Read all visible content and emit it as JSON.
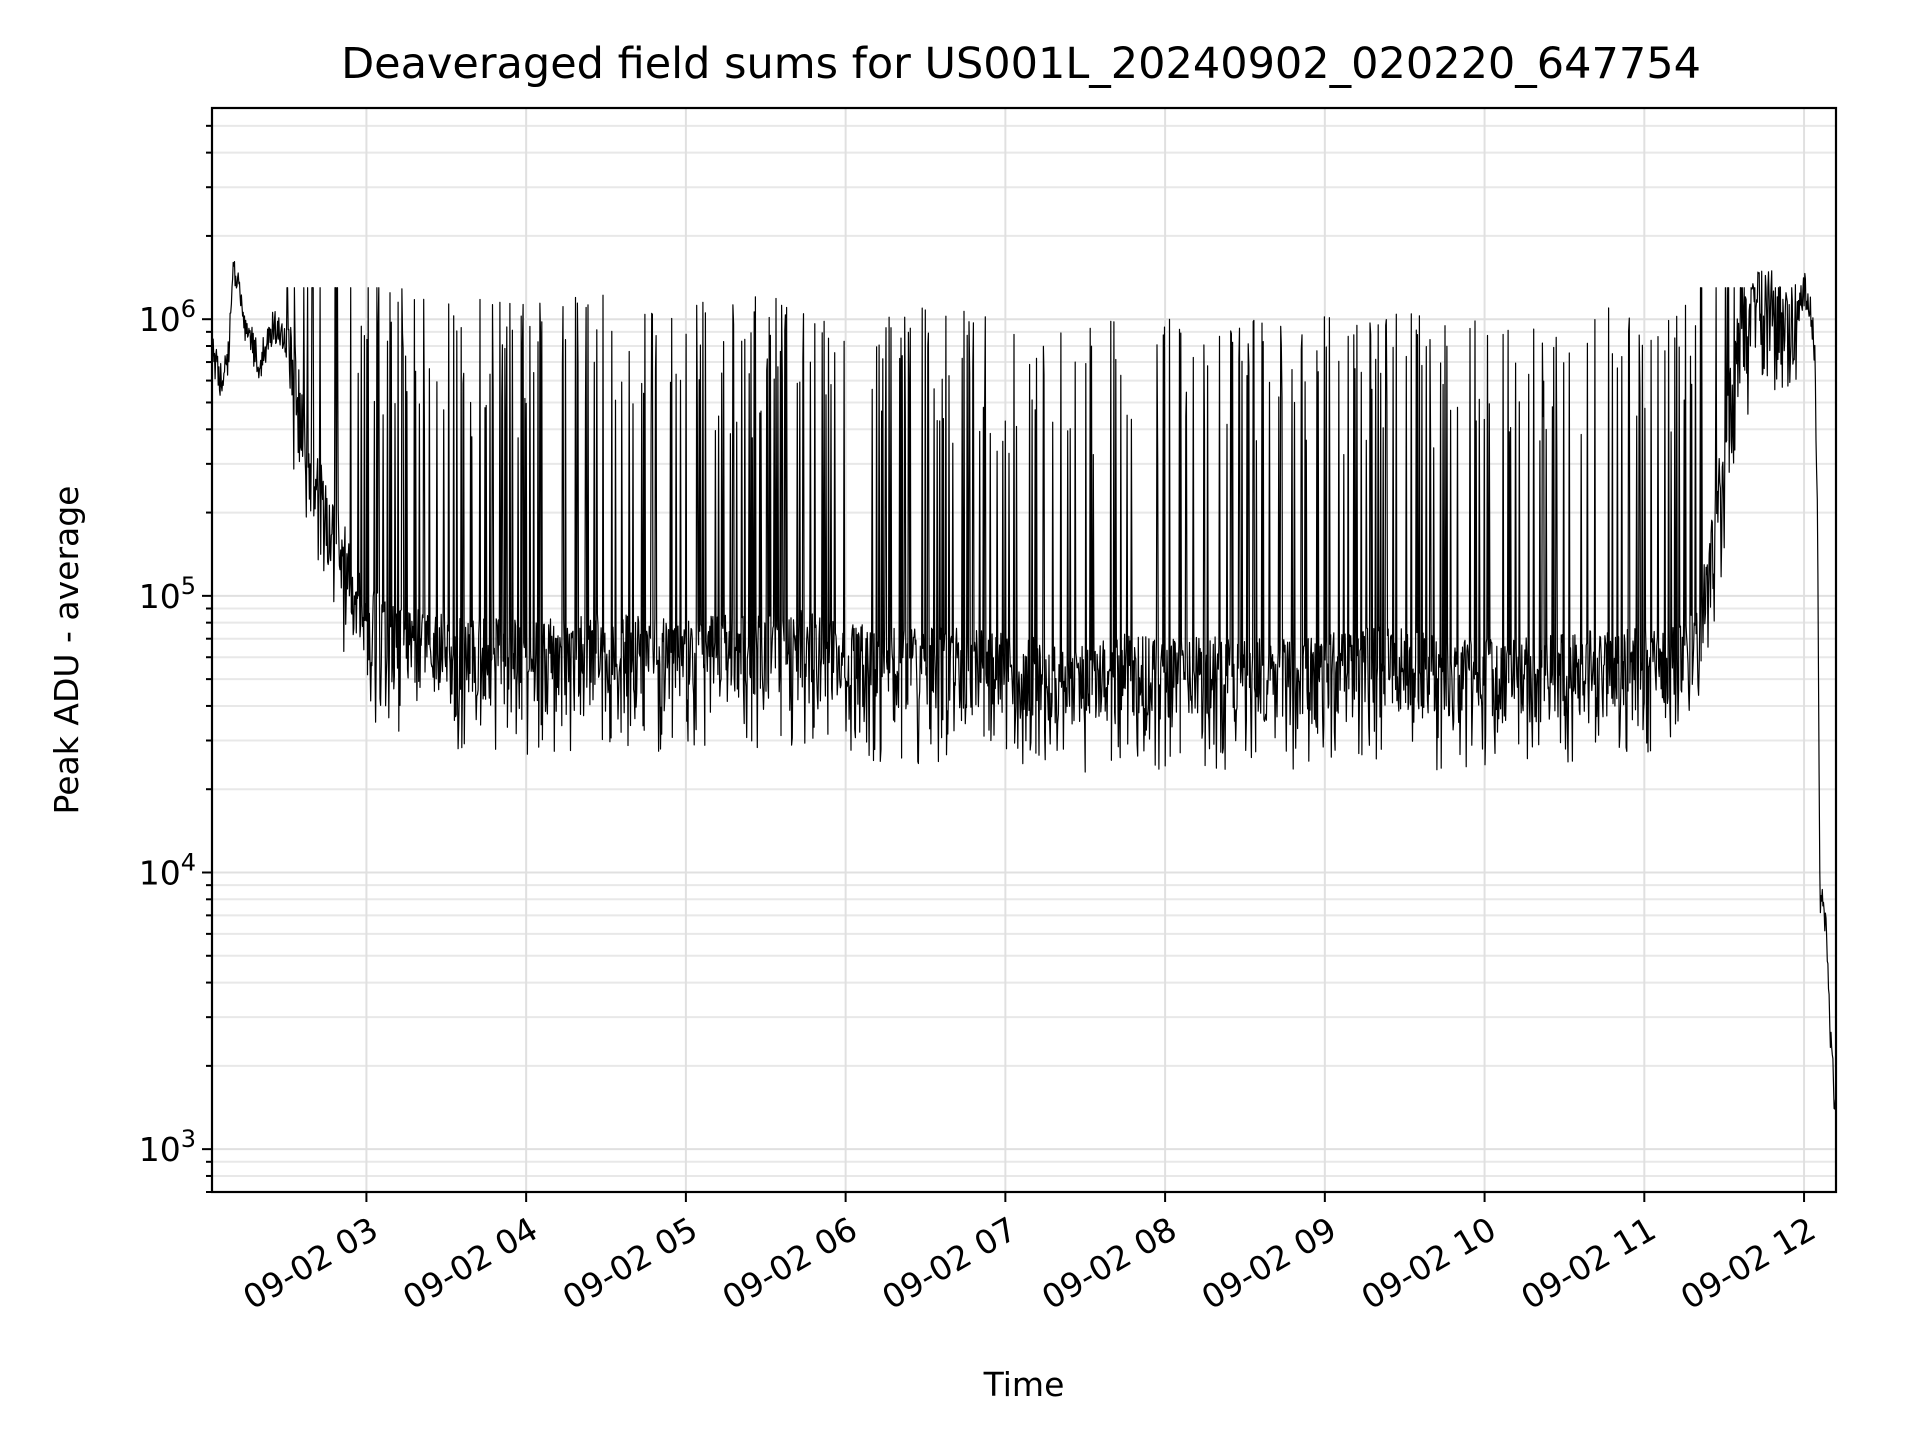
{
  "chart_data": {
    "type": "line",
    "title": "Deaveraged field sums for US001L_20240902_020220_647754",
    "xlabel": "Time",
    "ylabel": "Peak ADU - average",
    "yscale": "log",
    "ylim": [
      700,
      5800000
    ],
    "xlim": [
      "09-02 02:02",
      "09-02 12:12"
    ],
    "grid": true,
    "x_tick_labels": [
      "09-02 03",
      "09-02 04",
      "09-02 05",
      "09-02 06",
      "09-02 07",
      "09-02 08",
      "09-02 09",
      "09-02 10",
      "09-02 11",
      "09-02 12"
    ],
    "y_ticks": [
      {
        "base": "10",
        "exp": "3",
        "value": 1000
      },
      {
        "base": "10",
        "exp": "4",
        "value": 10000
      },
      {
        "base": "10",
        "exp": "5",
        "value": 100000
      },
      {
        "base": "10",
        "exp": "6",
        "value": 1000000
      }
    ],
    "series": [
      {
        "color": "#000000",
        "x": [
          "09-02 02:02",
          "09-02 02:05",
          "09-02 02:08",
          "09-02 02:10",
          "09-02 02:12",
          "09-02 02:15",
          "09-02 02:20",
          "09-02 02:25",
          "09-02 02:30",
          "09-02 02:35",
          "09-02 02:40",
          "09-02 02:45",
          "09-02 02:50",
          "09-02 02:55",
          "09-02 03:00",
          "09-02 03:10",
          "09-02 03:20",
          "09-02 03:30",
          "09-02 03:45",
          "09-02 04:00",
          "09-02 04:15",
          "09-02 04:30",
          "09-02 04:45",
          "09-02 05:00",
          "09-02 05:15",
          "09-02 05:30",
          "09-02 05:45",
          "09-02 06:00",
          "09-02 06:15",
          "09-02 06:30",
          "09-02 06:45",
          "09-02 07:00",
          "09-02 07:15",
          "09-02 07:30",
          "09-02 07:45",
          "09-02 08:00",
          "09-02 08:15",
          "09-02 08:30",
          "09-02 08:45",
          "09-02 09:00",
          "09-02 09:15",
          "09-02 09:30",
          "09-02 09:45",
          "09-02 10:00",
          "09-02 10:15",
          "09-02 10:30",
          "09-02 10:45",
          "09-02 11:00",
          "09-02 11:10",
          "09-02 11:20",
          "09-02 11:30",
          "09-02 11:35",
          "09-02 11:40",
          "09-02 11:45",
          "09-02 11:50",
          "09-02 11:55",
          "09-02 12:00",
          "09-02 12:02",
          "09-02 12:04",
          "09-02 12:05",
          "09-02 12:06",
          "09-02 12:08",
          "09-02 12:10",
          "09-02 12:12"
        ],
        "y": [
          800000,
          600000,
          700000,
          1500000,
          1400000,
          900000,
          700000,
          950000,
          800000,
          500000,
          250000,
          200000,
          150000,
          100000,
          80000,
          70000,
          65000,
          62000,
          60000,
          58000,
          60000,
          62000,
          60000,
          58000,
          62000,
          60000,
          65000,
          58000,
          55000,
          55000,
          56000,
          52000,
          50000,
          48000,
          52000,
          50000,
          52000,
          50000,
          50000,
          52000,
          55000,
          55000,
          50000,
          50000,
          52000,
          52000,
          55000,
          55000,
          55000,
          65000,
          300000,
          800000,
          1000000,
          1200000,
          1000000,
          900000,
          1300000,
          1200000,
          800000,
          200000,
          8000,
          7000,
          2500,
          1300
        ]
      }
    ]
  }
}
